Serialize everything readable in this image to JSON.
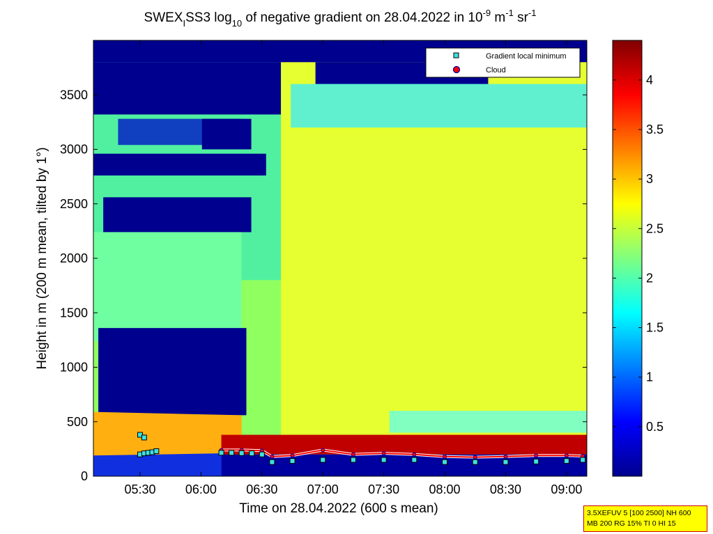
{
  "chart_data": {
    "type": "heatmap",
    "title": {
      "prefix": "SWEX",
      "sub_i": "I",
      "mid": "SS3 log",
      "sub_10": "10",
      "after_log": " of negative gradient on 28.04.2022 in 10",
      "exp1": "-9",
      "unit1": " m",
      "exp2": "-1",
      "unit2": " sr",
      "exp3": "-1"
    },
    "xlabel": "Time on 28.04.2022 (600 s mean)",
    "ylabel": "Height in m (200 m mean, tilted by 1°)",
    "x_range": [
      "05:07",
      "09:10"
    ],
    "y_range": [
      0,
      4000
    ],
    "x_ticks": [
      "05:30",
      "06:00",
      "06:30",
      "07:00",
      "07:30",
      "08:00",
      "08:30",
      "09:00"
    ],
    "y_ticks": [
      0,
      500,
      1000,
      1500,
      2000,
      2500,
      3000,
      3500
    ],
    "colorbar": {
      "colormap": "jet",
      "range": [
        0,
        4.4
      ],
      "ticks": [
        0.5,
        1,
        1.5,
        2,
        2.5,
        3,
        3.5,
        4
      ]
    },
    "legend": {
      "position": "top-right",
      "entries": [
        {
          "label": "Gradient local minimum",
          "marker": "square",
          "color": "#40e0e0"
        },
        {
          "label": "Cloud",
          "marker": "circle",
          "color": "#ff0000"
        }
      ]
    },
    "series": [
      {
        "name": "Gradient local minimum",
        "points": [
          [
            "05:30",
            200
          ],
          [
            "05:32",
            210
          ],
          [
            "05:34",
            215
          ],
          [
            "05:36",
            220
          ],
          [
            "05:38",
            230
          ],
          [
            "05:30",
            380
          ],
          [
            "05:32",
            355
          ],
          [
            "06:10",
            215
          ],
          [
            "06:15",
            215
          ],
          [
            "06:20",
            212
          ],
          [
            "06:25",
            210
          ],
          [
            "06:30",
            200
          ],
          [
            "06:35",
            130
          ],
          [
            "06:45",
            140
          ],
          [
            "07:00",
            150
          ],
          [
            "07:15",
            150
          ],
          [
            "07:30",
            150
          ],
          [
            "07:45",
            150
          ],
          [
            "08:00",
            130
          ],
          [
            "08:15",
            130
          ],
          [
            "08:30",
            130
          ],
          [
            "08:45",
            135
          ],
          [
            "09:00",
            140
          ],
          [
            "09:08",
            150
          ]
        ]
      },
      {
        "name": "Cloud",
        "points": [
          [
            "06:10",
            240
          ],
          [
            "06:20",
            240
          ],
          [
            "06:30",
            235
          ],
          [
            "06:35",
            180
          ],
          [
            "06:45",
            190
          ],
          [
            "07:00",
            240
          ],
          [
            "07:15",
            200
          ],
          [
            "07:30",
            210
          ],
          [
            "07:45",
            200
          ],
          [
            "08:00",
            180
          ],
          [
            "08:15",
            175
          ],
          [
            "08:30",
            180
          ],
          [
            "08:45",
            190
          ],
          [
            "09:00",
            190
          ],
          [
            "09:08",
            185
          ]
        ]
      }
    ]
  },
  "info_box": {
    "line1": "3.5XEFUV 5 [100 2500] NH 600",
    "line2": "MB 200 RG 15% TI 0 HI 15"
  }
}
